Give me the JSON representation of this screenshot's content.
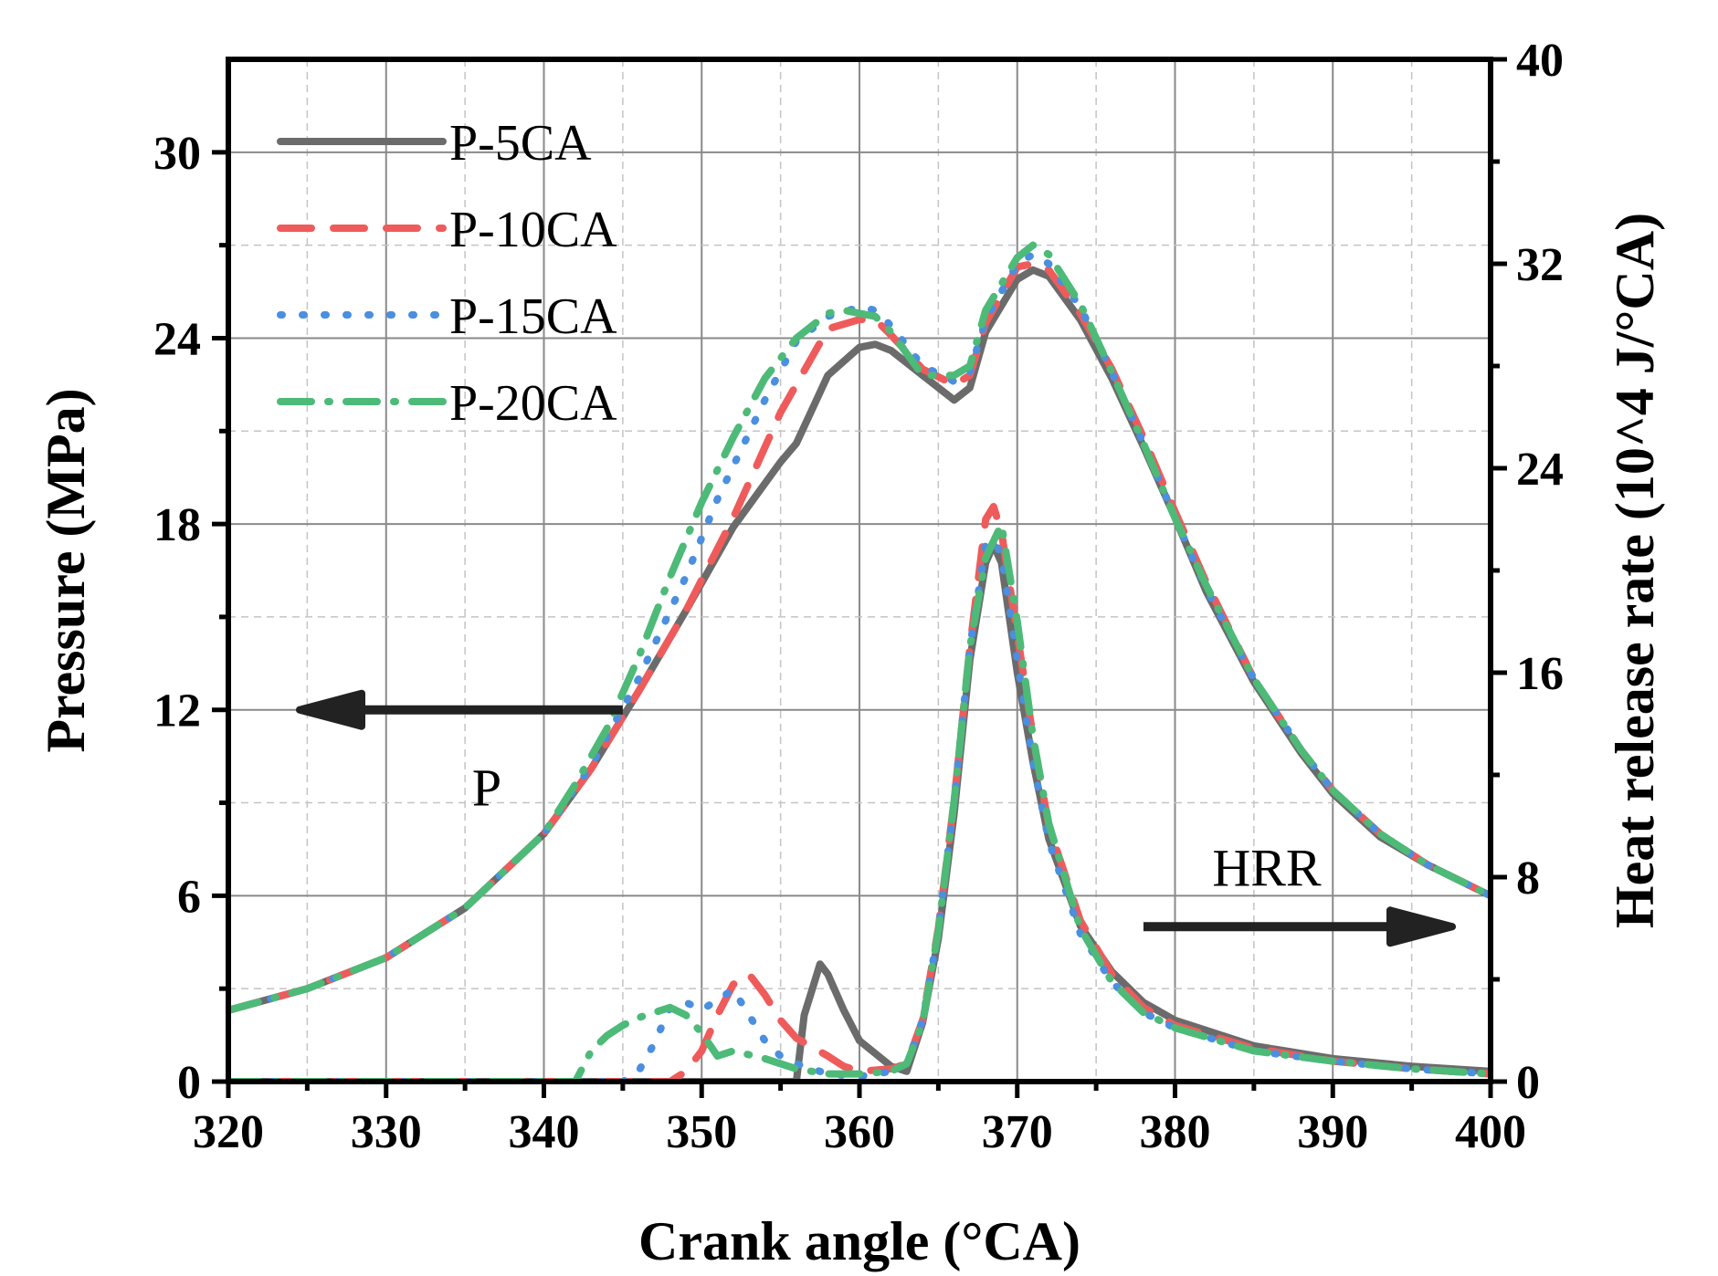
{
  "chart_data": {
    "type": "line",
    "xlabel": "Crank angle (°CA)",
    "ylabel_left": "Pressure (MPa)",
    "ylabel_right": "Heat release rate (10^4 J/°CA)",
    "xlim": [
      320,
      400
    ],
    "ylim_left": [
      0,
      33
    ],
    "ylim_right": [
      0,
      40
    ],
    "x_ticks": [
      320,
      330,
      340,
      350,
      360,
      370,
      380,
      390,
      400
    ],
    "y_left_ticks": [
      0,
      6,
      12,
      18,
      24,
      30
    ],
    "y_right_ticks": [
      0,
      8,
      16,
      24,
      32,
      40
    ],
    "grid": true,
    "legend_position": "top-left",
    "annotations": [
      {
        "text": "P",
        "arrow": "left",
        "x": 345,
        "y_left": 12
      },
      {
        "text": "HRR",
        "arrow": "right",
        "x": 378,
        "y_left": 5
      }
    ],
    "series": [
      {
        "name": "P-5CA",
        "color": "#6b6b6b",
        "dash": "solid",
        "pressure": {
          "x": [
            320,
            325,
            330,
            335,
            340,
            343,
            346,
            349,
            352,
            355,
            356,
            357,
            358,
            360,
            361,
            362,
            364,
            366,
            367,
            368,
            370,
            371,
            372,
            374,
            376,
            378,
            380,
            382,
            385,
            388,
            390,
            393,
            396,
            400
          ],
          "y": [
            2.3,
            3.0,
            4.0,
            5.6,
            8.0,
            10.1,
            12.6,
            15.2,
            17.9,
            20.0,
            20.6,
            21.7,
            22.8,
            23.7,
            23.8,
            23.6,
            22.8,
            22.0,
            22.4,
            24.2,
            25.9,
            26.2,
            26.0,
            24.6,
            22.7,
            20.5,
            18.2,
            15.8,
            12.9,
            10.6,
            9.3,
            7.9,
            7.0,
            6.0
          ]
        },
        "hrr": {
          "x": [
            320,
            350,
            355,
            356,
            356.5,
            357,
            357.5,
            358,
            359,
            360,
            362,
            363,
            364,
            365,
            366,
            367,
            368,
            368.5,
            369,
            370,
            371,
            372,
            374,
            376,
            378,
            380,
            385,
            390,
            395,
            400
          ],
          "y": [
            0,
            0,
            0,
            0,
            2.6,
            3.6,
            4.6,
            4.2,
            2.8,
            1.6,
            0.6,
            0.4,
            2.3,
            5.6,
            10.5,
            16.5,
            20.3,
            21.0,
            20.3,
            16.0,
            12.5,
            9.5,
            6.1,
            4.3,
            3.1,
            2.4,
            1.4,
            0.9,
            0.6,
            0.4
          ]
        }
      },
      {
        "name": "P-10CA",
        "color": "#ef5b5b",
        "dash": "long-dash",
        "pressure": {
          "x": [
            320,
            325,
            330,
            335,
            340,
            343,
            346,
            349,
            352,
            355,
            357,
            358,
            360,
            361,
            362,
            364,
            366,
            367,
            368,
            370,
            371,
            372,
            374,
            376,
            378,
            380,
            382,
            385,
            388,
            390,
            393,
            396,
            400
          ],
          "y": [
            2.3,
            3.0,
            4.0,
            5.6,
            8.0,
            10.1,
            12.6,
            15.2,
            18.2,
            21.6,
            23.4,
            24.3,
            24.6,
            24.6,
            24.1,
            23.0,
            22.5,
            22.8,
            24.5,
            26.3,
            26.4,
            26.2,
            24.8,
            23.0,
            20.8,
            18.4,
            16.1,
            13.0,
            10.7,
            9.4,
            8.0,
            7.0,
            6.0
          ]
        },
        "hrr": {
          "x": [
            320,
            348,
            349,
            350,
            351,
            352,
            353,
            354,
            355,
            356,
            358,
            359,
            360,
            362,
            363,
            364,
            365,
            366,
            367,
            368,
            368.5,
            369,
            370,
            371,
            372,
            374,
            376,
            378,
            380,
            385,
            390,
            395,
            400
          ],
          "y": [
            0,
            0,
            0.4,
            1.2,
            2.6,
            3.8,
            4.2,
            3.4,
            2.4,
            1.7,
            1.0,
            0.6,
            0.4,
            0.5,
            0.7,
            2.4,
            6.0,
            11.0,
            17.0,
            22.0,
            22.5,
            21.5,
            17.5,
            13.5,
            10.0,
            6.3,
            4.2,
            2.9,
            2.2,
            1.3,
            0.8,
            0.5,
            0.3
          ]
        }
      },
      {
        "name": "P-15CA",
        "color": "#4a8fe0",
        "dash": "dot",
        "pressure": {
          "x": [
            320,
            325,
            330,
            335,
            340,
            343,
            346,
            349,
            351,
            354,
            356,
            358,
            360,
            361,
            362,
            364,
            366,
            367,
            368,
            370,
            371,
            372,
            374,
            376,
            378,
            380,
            382,
            385,
            388,
            390,
            393,
            396,
            400
          ],
          "y": [
            2.3,
            3.0,
            4.0,
            5.6,
            8.0,
            10.2,
            13.0,
            16.3,
            18.8,
            22.0,
            23.9,
            24.7,
            25.0,
            24.9,
            24.4,
            23.1,
            22.6,
            22.9,
            24.6,
            26.4,
            26.7,
            26.4,
            25.0,
            22.9,
            20.6,
            18.2,
            15.9,
            13.0,
            10.7,
            9.4,
            8.0,
            7.0,
            6.0
          ]
        },
        "hrr": {
          "x": [
            320,
            345,
            346,
            347,
            348,
            349,
            350,
            351,
            352,
            353,
            354,
            355,
            356,
            358,
            360,
            362,
            363,
            364,
            365,
            366,
            367,
            368,
            368.5,
            369,
            370,
            371,
            372,
            374,
            376,
            378,
            380,
            385,
            390,
            395,
            400
          ],
          "y": [
            0,
            0,
            0.4,
            1.5,
            2.9,
            3.1,
            2.8,
            3.2,
            3.6,
            2.6,
            1.6,
            1.0,
            0.7,
            0.3,
            0.2,
            0.4,
            0.7,
            2.4,
            5.9,
            11.0,
            17.0,
            21.0,
            21.2,
            20.6,
            16.5,
            12.5,
            9.4,
            5.8,
            3.9,
            2.7,
            2.1,
            1.2,
            0.8,
            0.5,
            0.3
          ]
        }
      },
      {
        "name": "P-20CA",
        "color": "#4dba78",
        "dash": "dash-dot",
        "pressure": {
          "x": [
            320,
            325,
            330,
            335,
            340,
            342,
            344,
            346,
            348,
            350,
            352,
            354,
            356,
            358,
            359,
            360,
            361,
            362,
            364,
            366,
            367,
            368,
            370,
            371,
            372,
            374,
            376,
            378,
            380,
            382,
            385,
            388,
            390,
            393,
            396,
            400
          ],
          "y": [
            2.3,
            3.0,
            4.0,
            5.6,
            8.0,
            9.6,
            11.4,
            13.7,
            16.3,
            18.7,
            20.8,
            22.7,
            24.0,
            24.8,
            24.9,
            24.8,
            24.7,
            24.2,
            22.8,
            22.8,
            23.1,
            24.9,
            26.6,
            27.0,
            26.7,
            25.1,
            22.9,
            20.6,
            18.2,
            16.0,
            13.0,
            10.7,
            9.4,
            8.0,
            7.0,
            6.0
          ]
        },
        "hrr": {
          "x": [
            320,
            342,
            343,
            344,
            345,
            346,
            347,
            348,
            349,
            350,
            351,
            352,
            354,
            356,
            358,
            360,
            362,
            363,
            364,
            365,
            366,
            367,
            368,
            369,
            370,
            371,
            372,
            374,
            376,
            378,
            380,
            385,
            390,
            395,
            400
          ],
          "y": [
            0,
            0,
            1.2,
            1.8,
            2.2,
            2.5,
            2.7,
            2.9,
            2.6,
            1.9,
            1.0,
            1.2,
            0.9,
            0.5,
            0.3,
            0.3,
            0.4,
            0.7,
            2.3,
            5.9,
            11.0,
            17.0,
            20.5,
            21.8,
            18.0,
            13.5,
            10.1,
            6.0,
            3.9,
            2.7,
            2.1,
            1.2,
            0.8,
            0.5,
            0.3
          ]
        }
      }
    ]
  }
}
